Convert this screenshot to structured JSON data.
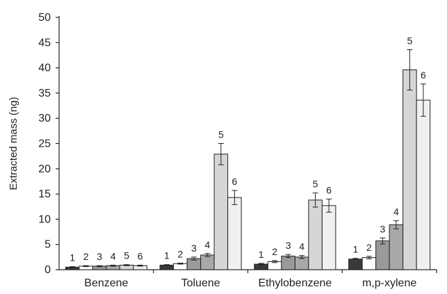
{
  "chart_data": {
    "type": "bar",
    "title": "",
    "xlabel": "",
    "ylabel": "Extracted mass (ng)",
    "ylim": [
      0,
      50
    ],
    "yticks": [
      0,
      5,
      10,
      15,
      20,
      25,
      30,
      35,
      40,
      45,
      50
    ],
    "grid": false,
    "legend": "none",
    "categories": [
      "Benzene",
      "Toluene",
      "Ethylobenzene",
      "m,p-xylene"
    ],
    "series": [
      {
        "label": "1",
        "color": "#3a3a3a",
        "values": [
          0.5,
          0.9,
          1.1,
          2.1
        ],
        "errors": [
          0.1,
          0.1,
          0.15,
          0.15
        ]
      },
      {
        "label": "2",
        "color": "#ffffff",
        "values": [
          0.7,
          1.2,
          1.6,
          2.4
        ],
        "errors": [
          0.1,
          0.1,
          0.2,
          0.25
        ]
      },
      {
        "label": "3",
        "color": "#9a9a9a",
        "values": [
          0.7,
          2.2,
          2.7,
          5.7
        ],
        "errors": [
          0.1,
          0.3,
          0.3,
          0.6
        ]
      },
      {
        "label": "4",
        "color": "#a8a8a8",
        "values": [
          0.8,
          2.9,
          2.5,
          8.9
        ],
        "errors": [
          0.1,
          0.3,
          0.3,
          0.8
        ]
      },
      {
        "label": "5",
        "color": "#d6d6d6",
        "values": [
          0.9,
          22.9,
          13.8,
          39.6
        ],
        "errors": [
          0.1,
          2.1,
          1.4,
          4.0
        ]
      },
      {
        "label": "6",
        "color": "#f0f0f0",
        "values": [
          0.8,
          14.3,
          12.7,
          33.6
        ],
        "errors": [
          0.1,
          1.4,
          1.3,
          3.2
        ]
      }
    ]
  }
}
